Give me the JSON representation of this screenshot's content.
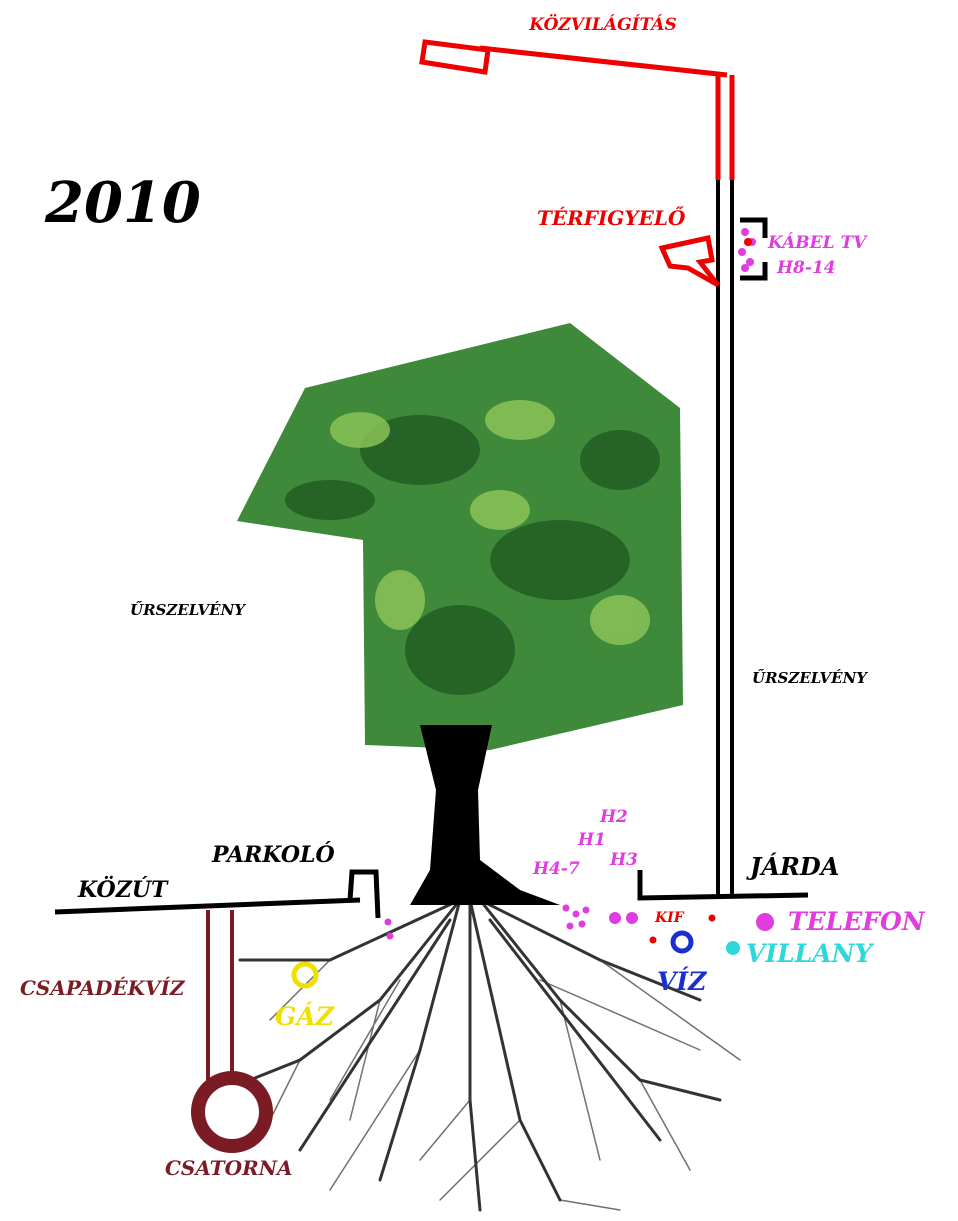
{
  "title": "KÖZVILÁGÍTÁS",
  "year": "2010",
  "camera": "TÉRFIGYELŐ",
  "cable": {
    "name": "KÁBEL TV",
    "code": "H8-14"
  },
  "clearance": [
    "ŰRSZELVÉNY",
    "ŰRSZELVÉNY"
  ],
  "surfaces": {
    "parking": "PARKOLÓ",
    "road": "KÖZÚT",
    "sidewalk": "JÁRDA"
  },
  "lines": {
    "h2": "H2",
    "h1": "H1",
    "h3": "H3",
    "h47": "H4-7",
    "kif": "KIF"
  },
  "utilities": {
    "telephone": "TELEFON",
    "power": "VILLANY",
    "water": "VÍZ",
    "gas": "GÁZ",
    "stormwater": "CSAPADÉKVÍZ",
    "sewer": "CSATORNA"
  }
}
